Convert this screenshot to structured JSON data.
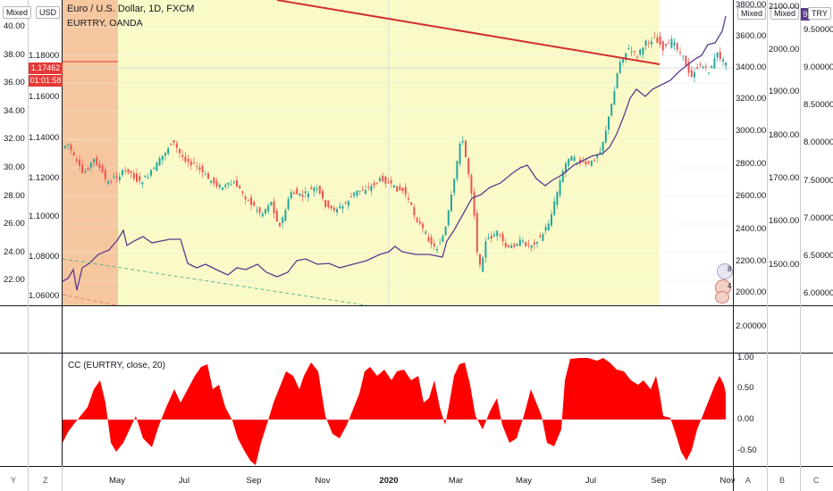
{
  "header": {
    "title": "Euro / U.S. Dollar, 1D, FXCM",
    "subtitle": "EURTRY, OANDA",
    "scale_left_1": "Mixed",
    "scale_left_2": "USD",
    "scale_right_1": "Mixed",
    "scale_right_2": "Mixed",
    "currency_tag": "TRY",
    "currency_num": "9"
  },
  "price_tags": {
    "last_price": "1.17462",
    "countdown": "01:01:58"
  },
  "left_axis_outer": [
    "40.00",
    "38.00",
    "36.00",
    "34.00",
    "32.00",
    "30.00",
    "28.00",
    "26.00",
    "24.00",
    "22.00"
  ],
  "left_axis_inner": [
    "1.18000",
    "1.16000",
    "1.14000",
    "1.12000",
    "1.10000",
    "1.08000",
    "1.06000"
  ],
  "right_axis_a": [
    "3800.00",
    "3600.00",
    "3400.00",
    "3200.00",
    "3000.00",
    "2800.00",
    "2600.00",
    "2400.00",
    "2200.00",
    "2000.00"
  ],
  "right_axis_b": [
    "2100.00",
    "2000.00",
    "1900.00",
    "1800.00",
    "1700.00",
    "1600.00",
    "1500.00"
  ],
  "right_axis_c": [
    "9.50000",
    "9.00000",
    "8.50000",
    "8.00000",
    "7.50000",
    "7.00000",
    "6.50000",
    "6.00000"
  ],
  "mid_axis": "2.00000",
  "badges": {
    "b1": "8",
    "b2": "4"
  },
  "indicator": {
    "label": "CC (EURTRY, close, 20)",
    "ticks": [
      "1.00",
      "0.50",
      "0.00",
      "-0.50"
    ]
  },
  "x_axis": {
    "months": [
      "May",
      "Jul",
      "Sep",
      "Nov",
      "2020",
      "Mar",
      "May",
      "Jul",
      "Sep",
      "Nov"
    ],
    "left_letters": [
      "Y",
      "Z"
    ],
    "right_letters": [
      "A",
      "B",
      "C"
    ]
  },
  "colors": {
    "up": "#26a69a",
    "down": "#ef5350",
    "purple": "#5b3b8c",
    "trend": "#d32f2f",
    "cc": "#ff0000",
    "yellow_zone": "#fafac8",
    "orange_zone": "#f6c79e"
  }
}
